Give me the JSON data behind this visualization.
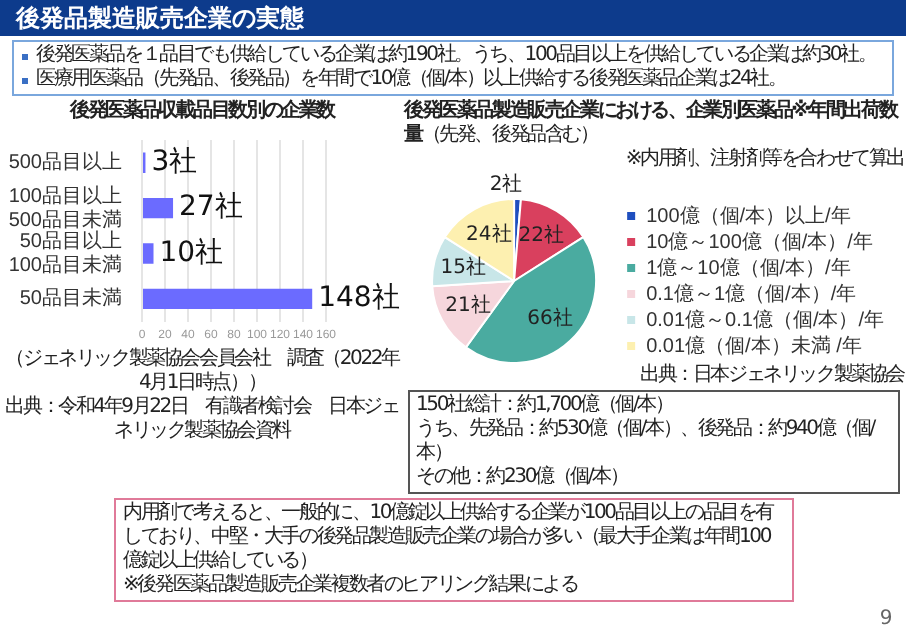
{
  "chart_data": [
    {
      "type": "other",
      "title": "後発品製造販売企業の実態",
      "annotations": [
        "後発医薬品を１品目でも供給している企業は約190社。うち、100品目以上を供給している企業は約30社。",
        "医療用医薬品（先発品、後発品）を年間で10億（個/本）以上供給する後発医薬品企業は24社。"
      ]
    },
    {
      "type": "bar",
      "orientation": "horizontal",
      "title": "後発医薬品収載品目数別の企業数",
      "categories": [
        "500品目以上",
        "100品目以上500品目未満",
        "50品目以上100品目未満",
        "50品目未満"
      ],
      "values": [
        3,
        27,
        10,
        148
      ],
      "color": "#6b6bff",
      "value_labels": [
        "3社",
        "27社",
        "10社",
        "148社"
      ],
      "xlim": [
        0,
        160
      ],
      "xticks": [
        0,
        20,
        40,
        60,
        80,
        100,
        120,
        140,
        160
      ],
      "grid": "x",
      "annotations": [
        "（ジェネリック製薬協会会員会社　調査（2022年4月1日時点））",
        "出典：令和4年9月22日　有識者検討会　日本ジェネリック製薬協会資料"
      ]
    },
    {
      "type": "pie",
      "title": "後発医薬品製造販売企業における、企業別医薬品※年間出荷数量",
      "subtitle": "（先発、後発品含む）",
      "categories": [
        "100億（個/本）以上/年",
        "10億～100億（個/本）/年",
        "1億～10億（個/本）/年",
        "0.1億～1億（個/本）/年",
        "0.01億～0.1億（個/本）/年",
        "0.01億（個/本）未満 /年"
      ],
      "values": [
        2,
        22,
        66,
        21,
        15,
        24
      ],
      "colors": [
        "#1f4fbf",
        "#d9405e",
        "#4aaba0",
        "#f6d6dc",
        "#c8e6e8",
        "#fdf0b0"
      ],
      "value_labels": [
        "2社",
        "22社",
        "66社",
        "21社",
        "15社",
        "24社"
      ],
      "legend": "right",
      "annotations": [
        "※内用剤、注射剤等を合わせて算出",
        "出典：日本ジェネリック製薬協会",
        "150社総計：約1,700億（個/本）",
        "うち、先発品：約530億（個/本）、後発品：約940億（個/本）",
        "その他：約230億（個/本）"
      ]
    },
    {
      "type": "other",
      "annotations": [
        "内用剤で考えると、一般的に、10億錠以上供給する企業が100品目以上の品目を有しており、中堅・大手の後発品製造販売企業の場合が多い（最大手企業は年間100億錠以上供給している）",
        "※後発医薬品製造販売企業複数者のヒアリング結果による",
        "9"
      ]
    }
  ]
}
